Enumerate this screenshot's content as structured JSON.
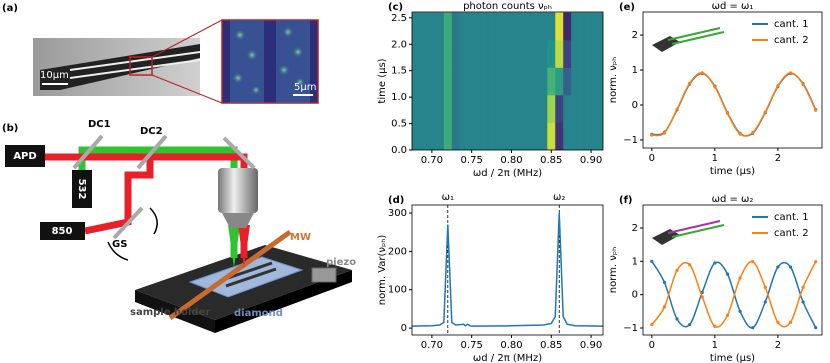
{
  "panel_a": {
    "label": "(a)",
    "scale_main": "10μm",
    "scale_inset": "5μm"
  },
  "panel_b": {
    "label": "(b)",
    "apd": "APD",
    "dc1": "DC1",
    "dc2": "DC2",
    "laser_532": "532",
    "laser_850": "850",
    "gs": "GS",
    "mw": "MW",
    "piezo": "piezo",
    "sample_holder": "sample holder",
    "diamond": "diamond"
  },
  "chart_data": [
    {
      "type": "heatmap",
      "label": "(c)",
      "title": "photon counts νₚₕ",
      "x_label": "ωd / 2π (MHz)",
      "y_label": "time (μs)",
      "x_edges": [
        0.675,
        0.685,
        0.695,
        0.705,
        0.715,
        0.725,
        0.735,
        0.745,
        0.755,
        0.765,
        0.775,
        0.785,
        0.795,
        0.805,
        0.815,
        0.825,
        0.835,
        0.845,
        0.855,
        0.865,
        0.875,
        0.885,
        0.895,
        0.905,
        0.915
      ],
      "y_edges": [
        0,
        0.52,
        1.04,
        1.56,
        2.08,
        2.6
      ],
      "z": [
        [
          0.45,
          0.45,
          0.45,
          0.45,
          0.62,
          0.4,
          0.45,
          0.45,
          0.45,
          0.45,
          0.45,
          0.45,
          0.45,
          0.45,
          0.45,
          0.45,
          0.45,
          0.92,
          0.15,
          0.45,
          0.45,
          0.45,
          0.45,
          0.45
        ],
        [
          0.45,
          0.45,
          0.45,
          0.45,
          0.62,
          0.4,
          0.45,
          0.45,
          0.45,
          0.45,
          0.45,
          0.45,
          0.45,
          0.45,
          0.45,
          0.45,
          0.45,
          0.85,
          0.2,
          0.45,
          0.45,
          0.45,
          0.45,
          0.45
        ],
        [
          0.45,
          0.45,
          0.45,
          0.45,
          0.62,
          0.4,
          0.45,
          0.45,
          0.45,
          0.45,
          0.45,
          0.45,
          0.45,
          0.45,
          0.45,
          0.45,
          0.45,
          0.65,
          0.55,
          0.3,
          0.45,
          0.45,
          0.45,
          0.45
        ],
        [
          0.45,
          0.45,
          0.45,
          0.45,
          0.62,
          0.4,
          0.45,
          0.45,
          0.45,
          0.45,
          0.45,
          0.45,
          0.45,
          0.45,
          0.45,
          0.45,
          0.45,
          0.5,
          0.9,
          0.2,
          0.45,
          0.45,
          0.45,
          0.45
        ],
        [
          0.45,
          0.45,
          0.45,
          0.45,
          0.62,
          0.4,
          0.45,
          0.45,
          0.45,
          0.45,
          0.45,
          0.45,
          0.45,
          0.45,
          0.45,
          0.45,
          0.45,
          0.45,
          0.95,
          0.12,
          0.45,
          0.45,
          0.45,
          0.45
        ]
      ],
      "colormap": [
        "#440154",
        "#3b528b",
        "#21918c",
        "#5ec962",
        "#fde725"
      ],
      "xlim": [
        0.675,
        0.915
      ],
      "ylim": [
        0,
        2.61
      ],
      "xticks": [
        {
          "value": 0.7,
          "label": "0.70"
        },
        0.75,
        {
          "value": 0.8,
          "label": "0.80"
        },
        0.85,
        {
          "value": 0.9,
          "label": "0.90"
        }
      ],
      "yticks": [
        {
          "value": 0,
          "label": "0.0"
        },
        0.5,
        {
          "value": 1,
          "label": "1.0"
        },
        1.5,
        {
          "value": 2,
          "label": "2.0"
        },
        2.5
      ]
    },
    {
      "type": "line",
      "label": "(d)",
      "x_label": "ωd / 2π (MHz)",
      "y_label": "norm. Var(νₚₕ)",
      "x": [
        0.675,
        0.7,
        0.71,
        0.715,
        0.72,
        0.725,
        0.73,
        0.74,
        0.742,
        0.745,
        0.748,
        0.75,
        0.8,
        0.84,
        0.85,
        0.855,
        0.86,
        0.865,
        0.87,
        0.88,
        0.915
      ],
      "series": [
        {
          "color": "#1f77b4",
          "values": [
            5,
            6,
            8,
            15,
            270,
            15,
            8,
            10,
            6,
            10,
            6,
            5,
            6,
            8,
            12,
            30,
            300,
            30,
            10,
            6,
            5
          ]
        }
      ],
      "markers": [
        {
          "x": 0.72,
          "label": "ω₁"
        },
        {
          "x": 0.86,
          "label": "ω₂"
        }
      ],
      "xlim": [
        0.675,
        0.915
      ],
      "ylim": [
        -18,
        321
      ],
      "xticks": [
        {
          "value": 0.7,
          "label": "0.70"
        },
        0.75,
        {
          "value": 0.8,
          "label": "0.80"
        },
        0.85,
        {
          "value": 0.9,
          "label": "0.90"
        }
      ],
      "yticks": [
        0,
        100,
        200,
        300
      ]
    },
    {
      "type": "line",
      "label": "(e)",
      "title": "ωd = ω₁",
      "x_label": "time (μs)",
      "y_label": "norm. νₚₕ",
      "legend": "upper right",
      "x": [
        0,
        0.2,
        0.4,
        0.6,
        0.8,
        1.0,
        1.2,
        1.4,
        1.6,
        1.8,
        2.0,
        2.2,
        2.4,
        2.6
      ],
      "series": [
        {
          "name": "cant. 1",
          "color": "#1f77b4",
          "values": [
            -0.84,
            -0.78,
            -0.14,
            0.6,
            0.9,
            0.54,
            -0.22,
            -0.81,
            -0.81,
            -0.22,
            0.53,
            0.9,
            0.61,
            -0.13
          ]
        },
        {
          "name": "cant. 2",
          "color": "#ff7f0e",
          "values": [
            -0.86,
            -0.8,
            -0.12,
            0.62,
            0.92,
            0.52,
            -0.24,
            -0.83,
            -0.79,
            -0.2,
            0.55,
            0.92,
            0.59,
            -0.15
          ]
        }
      ],
      "xlim": [
        -0.14,
        2.7
      ],
      "ylim": [
        -1.23,
        2.66
      ],
      "xticks": [
        0,
        1,
        2
      ],
      "yticks": [
        {
          "value": -1,
          "label": "−1"
        },
        0,
        1,
        2
      ]
    },
    {
      "type": "line",
      "label": "(f)",
      "title": "ωd = ω₂",
      "x_label": "time (μs)",
      "y_label": "norm. νₚₕ",
      "legend": "upper right",
      "x": [
        0,
        0.2,
        0.4,
        0.6,
        0.8,
        1.0,
        1.2,
        1.4,
        1.6,
        1.8,
        2.0,
        2.2,
        2.4,
        2.6
      ],
      "series": [
        {
          "name": "cant. 1",
          "color": "#1f77b4",
          "values": [
            1.0,
            0.37,
            -0.73,
            -0.9,
            0.07,
            0.95,
            0.62,
            -0.5,
            -0.99,
            -0.22,
            0.83,
            0.83,
            -0.22,
            -0.99
          ]
        },
        {
          "name": "cant. 2",
          "color": "#ff7f0e",
          "values": [
            -0.9,
            -0.37,
            0.73,
            0.9,
            -0.07,
            -0.95,
            -0.62,
            0.5,
            0.99,
            0.22,
            -0.83,
            -0.83,
            0.22,
            0.99
          ]
        }
      ],
      "xlim": [
        -0.14,
        2.7
      ],
      "ylim": [
        -1.21,
        2.69
      ],
      "xticks": [
        0,
        1,
        2
      ],
      "yticks": [
        {
          "value": -1,
          "label": "−1"
        },
        0,
        1,
        2
      ]
    }
  ]
}
